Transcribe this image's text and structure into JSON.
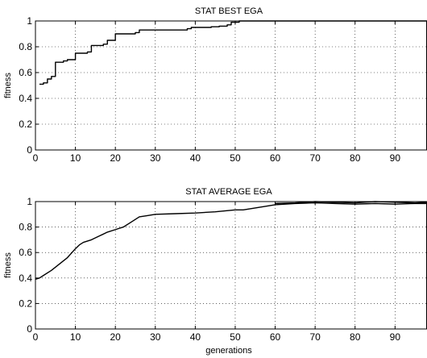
{
  "chart_data": [
    {
      "type": "line",
      "title": "STAT BEST EGA",
      "xlabel": "",
      "ylabel": "fitness",
      "xlim": [
        0,
        98
      ],
      "ylim": [
        0,
        1
      ],
      "x_ticks": [
        0,
        10,
        20,
        30,
        40,
        50,
        60,
        70,
        80,
        90
      ],
      "y_ticks": [
        0,
        0.2,
        0.4,
        0.6,
        0.8,
        1
      ],
      "y_tick_labels": [
        "0",
        "0.2",
        "0.4",
        "0.6",
        "0.8",
        "1"
      ],
      "grid": true,
      "step": true,
      "series": [
        {
          "x": [
            1,
            2,
            3,
            4,
            5,
            7,
            8,
            10,
            13,
            14,
            17,
            18,
            20,
            25,
            26,
            38,
            39,
            44,
            46,
            48,
            49,
            51,
            98
          ],
          "y": [
            0.51,
            0.52,
            0.55,
            0.57,
            0.68,
            0.69,
            0.7,
            0.75,
            0.76,
            0.81,
            0.82,
            0.85,
            0.9,
            0.91,
            0.93,
            0.94,
            0.95,
            0.955,
            0.96,
            0.97,
            0.99,
            1.0,
            1.0
          ]
        }
      ]
    },
    {
      "type": "line",
      "title": "STAT AVERAGE EGA",
      "xlabel": "generations",
      "ylabel": "fitness",
      "xlim": [
        0,
        98
      ],
      "ylim": [
        0,
        1
      ],
      "x_ticks": [
        0,
        10,
        20,
        30,
        40,
        50,
        60,
        70,
        80,
        90
      ],
      "y_ticks": [
        0,
        0.2,
        0.4,
        0.6,
        0.8,
        1
      ],
      "y_tick_labels": [
        "0",
        "0.2",
        "0.4",
        "0.6",
        "0.8",
        "1"
      ],
      "grid": true,
      "step": false,
      "series": [
        {
          "x": [
            0,
            1,
            2,
            4,
            6,
            8,
            10,
            11,
            12,
            14,
            16,
            18,
            20,
            22,
            24,
            26,
            28,
            30,
            35,
            40,
            45,
            50,
            52,
            55,
            60,
            65,
            70,
            75,
            80,
            85,
            90,
            95,
            98
          ],
          "y": [
            0.39,
            0.4,
            0.42,
            0.46,
            0.51,
            0.56,
            0.63,
            0.66,
            0.68,
            0.7,
            0.73,
            0.76,
            0.78,
            0.8,
            0.84,
            0.88,
            0.89,
            0.9,
            0.905,
            0.91,
            0.92,
            0.935,
            0.935,
            0.95,
            0.975,
            0.985,
            0.99,
            0.985,
            0.98,
            0.985,
            0.98,
            0.985,
            0.985
          ]
        },
        {
          "x": [
            60,
            65,
            70,
            75,
            80,
            85,
            90,
            95,
            98
          ],
          "y": [
            0.985,
            0.99,
            1.0,
            0.995,
            0.99,
            1.0,
            0.995,
            0.99,
            0.995
          ]
        }
      ]
    }
  ]
}
